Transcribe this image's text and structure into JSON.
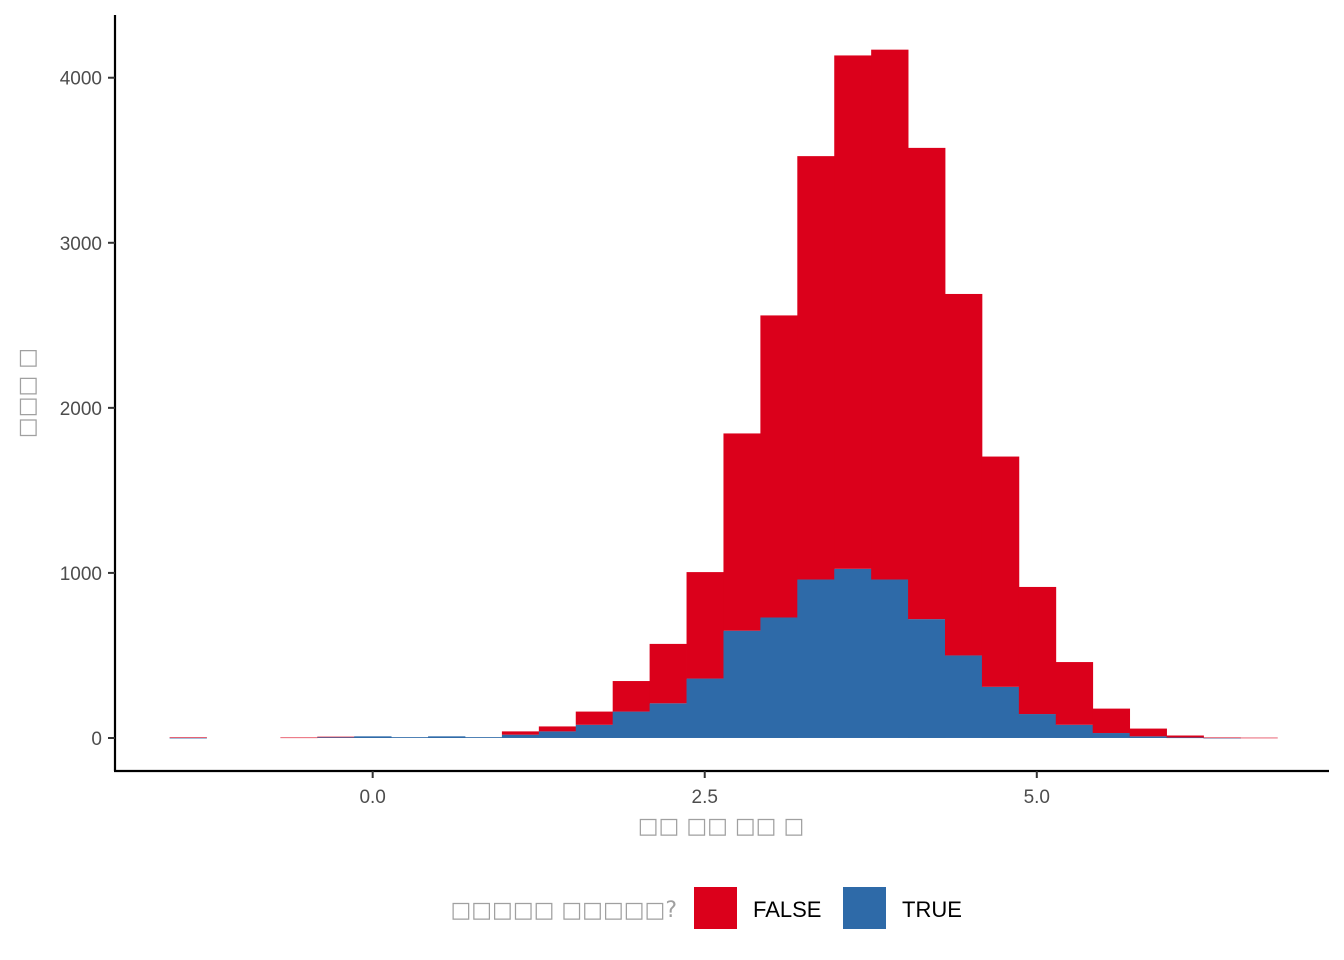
{
  "chart_data": {
    "type": "bar",
    "subtype": "stacked-histogram",
    "title": "",
    "xlabel": "□□ □□ □□ □",
    "ylabel": "□□□ □",
    "xlim": [
      -1.94,
      7.2
    ],
    "ylim": [
      -200,
      4380
    ],
    "x_ticks": [
      "0.0",
      "2.5",
      "5.0"
    ],
    "x_tick_values": [
      0.0,
      2.5,
      5.0
    ],
    "y_ticks": [
      "0",
      "1000",
      "2000",
      "3000",
      "4000"
    ],
    "y_tick_values": [
      0,
      1000,
      2000,
      3000,
      4000
    ],
    "bin_width": 0.278,
    "bin_centers": [
      -1.39,
      -1.112,
      -0.834,
      -0.556,
      -0.278,
      0.0,
      0.278,
      0.556,
      0.834,
      1.112,
      1.39,
      1.668,
      1.946,
      2.224,
      2.502,
      2.78,
      3.058,
      3.336,
      3.614,
      3.892,
      4.17,
      4.448,
      4.726,
      5.004,
      5.282,
      5.56,
      5.838,
      6.116,
      6.394,
      6.672
    ],
    "series": [
      {
        "name": "TRUE",
        "color": "#2E6AA8",
        "values": [
          1,
          0,
          0,
          0,
          5,
          10,
          5,
          10,
          5,
          20,
          40,
          80,
          160,
          210,
          360,
          650,
          730,
          960,
          1025,
          960,
          720,
          500,
          310,
          145,
          80,
          30,
          10,
          3,
          1,
          0
        ]
      },
      {
        "name": "FALSE",
        "color": "#DB001B",
        "values": [
          3,
          0,
          0,
          3,
          3,
          0,
          0,
          0,
          0,
          20,
          30,
          80,
          185,
          360,
          645,
          1195,
          1830,
          2565,
          3110,
          3210,
          2855,
          2190,
          1395,
          770,
          380,
          148,
          47,
          12,
          2,
          2
        ]
      }
    ],
    "legend": {
      "title": "□□□□□ □□□□□?",
      "placement": "bottom",
      "entries": [
        {
          "label": "FALSE",
          "color": "#DB001B"
        },
        {
          "label": "TRUE",
          "color": "#2E6AA8"
        }
      ]
    },
    "grid": false
  }
}
